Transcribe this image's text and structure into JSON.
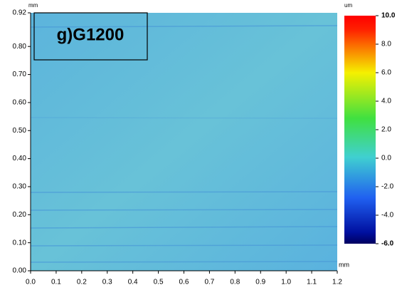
{
  "chart_data": {
    "type": "heatmap",
    "title": "g)G1200",
    "x_label": "mm",
    "y_label": "mm",
    "colorbar_label": "um",
    "xlim": [
      0,
      1.2
    ],
    "xticks": [
      {
        "value": 0,
        "label": "0.0"
      },
      0.1,
      0.2,
      0.3,
      0.4,
      0.5,
      0.6,
      0.7,
      0.8,
      0.9,
      {
        "value": 1,
        "label": "1.0"
      },
      1.1,
      1.2
    ],
    "ylim": [
      0,
      0.92
    ],
    "yticks": [
      {
        "value": 0,
        "label": "0.00"
      },
      {
        "value": 0.1,
        "label": "0.10"
      },
      {
        "value": 0.2,
        "label": "0.20"
      },
      {
        "value": 0.3,
        "label": "0.30"
      },
      {
        "value": 0.4,
        "label": "0.40"
      },
      {
        "value": 0.5,
        "label": "0.50"
      },
      {
        "value": 0.6,
        "label": "0.60"
      },
      {
        "value": 0.7,
        "label": "0.70"
      },
      {
        "value": 0.8,
        "label": "0.80"
      },
      0.92
    ],
    "zlim": [
      -6,
      10
    ],
    "zticks": [
      {
        "value": 10,
        "label": "10.0"
      },
      {
        "value": 8,
        "label": "8.0"
      },
      {
        "value": 6,
        "label": "6.0"
      },
      {
        "value": 4,
        "label": "4.0"
      },
      {
        "value": 2,
        "label": "2.0"
      },
      {
        "value": 0,
        "label": "0.0"
      },
      {
        "value": -2,
        "label": "-2.0"
      },
      {
        "value": -4,
        "label": "-4.0"
      },
      {
        "value": -6,
        "label": "-6.0"
      }
    ]
  }
}
